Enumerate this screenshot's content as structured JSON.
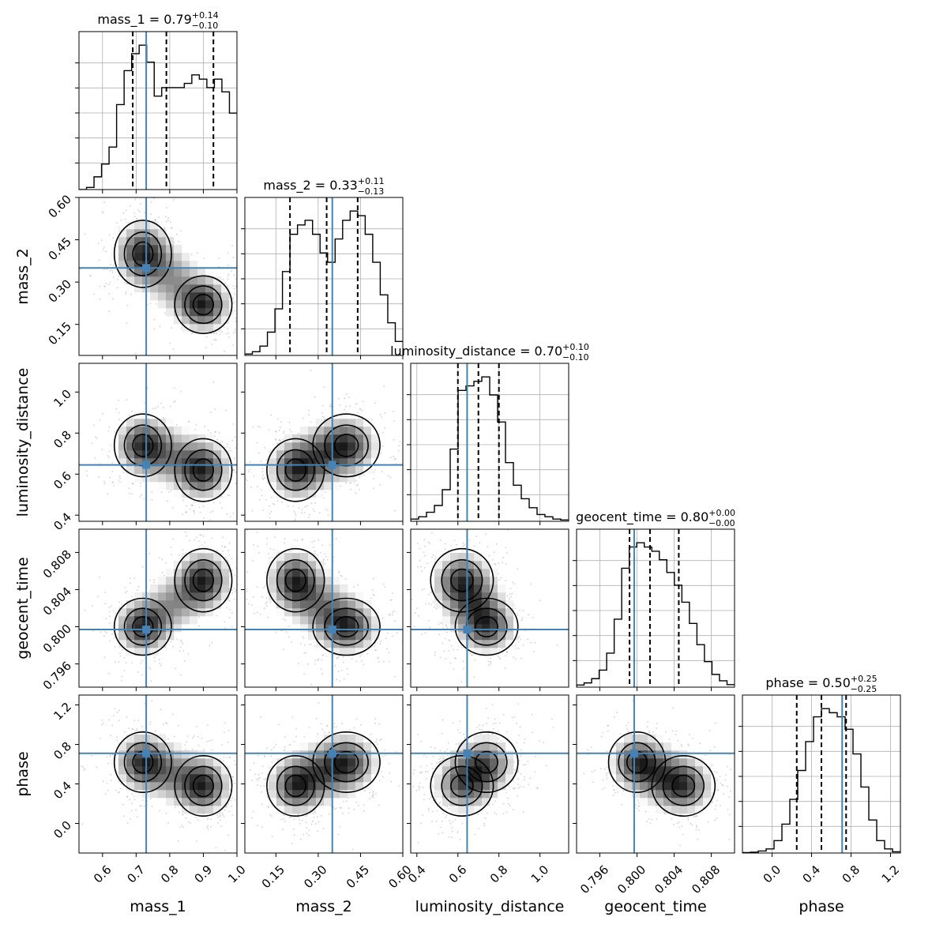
{
  "chart_data": {
    "type": "corner",
    "parameters": [
      "mass_1",
      "mass_2",
      "luminosity_distance",
      "geocent_time",
      "phase"
    ],
    "axis_labels": [
      "mass_1",
      "mass_2",
      "luminosity_distance",
      "geocent_time",
      "phase"
    ],
    "ranges": [
      [
        0.53,
        1.0
      ],
      [
        0.04,
        0.6
      ],
      [
        0.37,
        1.14
      ],
      [
        0.7935,
        0.8105
      ],
      [
        -0.3,
        1.3
      ]
    ],
    "ticks": [
      [
        0.6,
        0.7,
        0.8,
        0.9,
        1.0
      ],
      [
        0.15,
        0.3,
        0.45,
        0.6
      ],
      [
        0.4,
        0.6,
        0.8,
        1.0
      ],
      [
        0.796,
        0.8,
        0.804,
        0.808
      ],
      [
        0.0,
        0.4,
        0.8,
        1.2
      ]
    ],
    "tick_labels": [
      [
        "0.6",
        "0.7",
        "0.8",
        "0.9",
        "1.0"
      ],
      [
        "0.15",
        "0.30",
        "0.45",
        "0.60"
      ],
      [
        "0.4",
        "0.6",
        "0.8",
        "1.0"
      ],
      [
        "0.796",
        "0.800",
        "0.804",
        "0.808"
      ],
      [
        "0.0",
        "0.4",
        "0.8",
        "1.2"
      ]
    ],
    "titles": [
      {
        "text": "mass_1 = 0.79",
        "sup": "+0.14",
        "sub": "−0.10"
      },
      {
        "text": "mass_2 = 0.33",
        "sup": "+0.11",
        "sub": "−0.13"
      },
      {
        "text": "luminosity_distance = 0.70",
        "sup": "+0.10",
        "sub": "−0.10"
      },
      {
        "text": "geocent_time = 0.80",
        "sup": "+0.00",
        "sub": "−0.00"
      },
      {
        "text": "phase = 0.50",
        "sup": "+0.25",
        "sub": "−0.25"
      }
    ],
    "truths": [
      0.73,
      0.35,
      0.645,
      0.7997,
      0.71
    ],
    "quantiles": [
      [
        0.69,
        0.79,
        0.93
      ],
      [
        0.2,
        0.33,
        0.44
      ],
      [
        0.6,
        0.7,
        0.8
      ],
      [
        0.7992,
        0.8014,
        0.8045
      ],
      [
        0.25,
        0.5,
        0.75
      ]
    ],
    "histograms": [
      [
        0,
        0.5,
        3,
        6,
        10,
        20,
        28,
        32,
        34,
        30,
        22,
        24,
        24,
        24,
        25,
        27,
        26,
        24,
        26,
        23,
        18
      ],
      [
        0.3,
        0.8,
        2,
        5,
        10,
        18,
        26,
        28,
        29,
        26,
        22,
        20,
        25,
        29,
        31,
        30,
        26,
        20,
        13,
        7,
        3
      ],
      [
        0.5,
        1,
        2,
        3.5,
        7,
        16,
        29,
        30,
        31,
        32,
        28,
        22,
        13,
        8,
        5,
        3,
        1.5,
        1,
        0.5,
        0.3
      ],
      [
        0.5,
        1,
        2,
        4,
        8,
        16,
        28,
        33,
        34,
        33,
        32,
        30,
        27,
        24,
        20,
        15,
        10,
        6,
        3,
        1.5,
        0.6
      ],
      [
        0.1,
        0.2,
        0.5,
        1,
        3,
        7,
        13,
        20,
        27,
        33,
        35,
        34,
        33,
        30,
        24,
        16,
        8,
        3,
        1,
        0.3
      ]
    ],
    "grid": true,
    "colors": {
      "truth": "#4682b4",
      "hist": "#000000",
      "contour": "#000000",
      "grid": "#b0b0b0"
    }
  }
}
